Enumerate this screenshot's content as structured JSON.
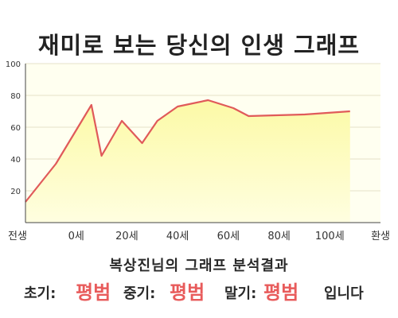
{
  "title": "재미로 보는 당신의 인생 그래프",
  "chart_data": {
    "type": "area",
    "categories": [
      "전생",
      "0세",
      "20세",
      "40세",
      "60세",
      "80세",
      "100세",
      "환생"
    ],
    "x": [
      0,
      0.6,
      1.3,
      1.5,
      1.9,
      2.3,
      2.6,
      3.0,
      3.6,
      4.1,
      4.4,
      5.5,
      6.4
    ],
    "values": [
      13,
      37,
      74,
      42,
      64,
      50,
      64,
      73,
      77,
      72,
      67,
      68,
      70
    ],
    "ylim": [
      0,
      100
    ],
    "yticks": [
      20,
      40,
      60,
      80,
      100
    ],
    "colors": {
      "line": "#e05a5a",
      "fill_top": "#fcfaa6",
      "fill_bottom": "#fffee0",
      "plot_bg": "#fffff0",
      "grid": "#e6e2c8"
    }
  },
  "result": {
    "heading": "복상진님의 그래프 분석결과",
    "early_label": "초기:",
    "early_value": "평범",
    "middle_label": "중기:",
    "middle_value": "평범",
    "late_label": "말기:",
    "late_value": "평범",
    "suffix": "입니다"
  }
}
